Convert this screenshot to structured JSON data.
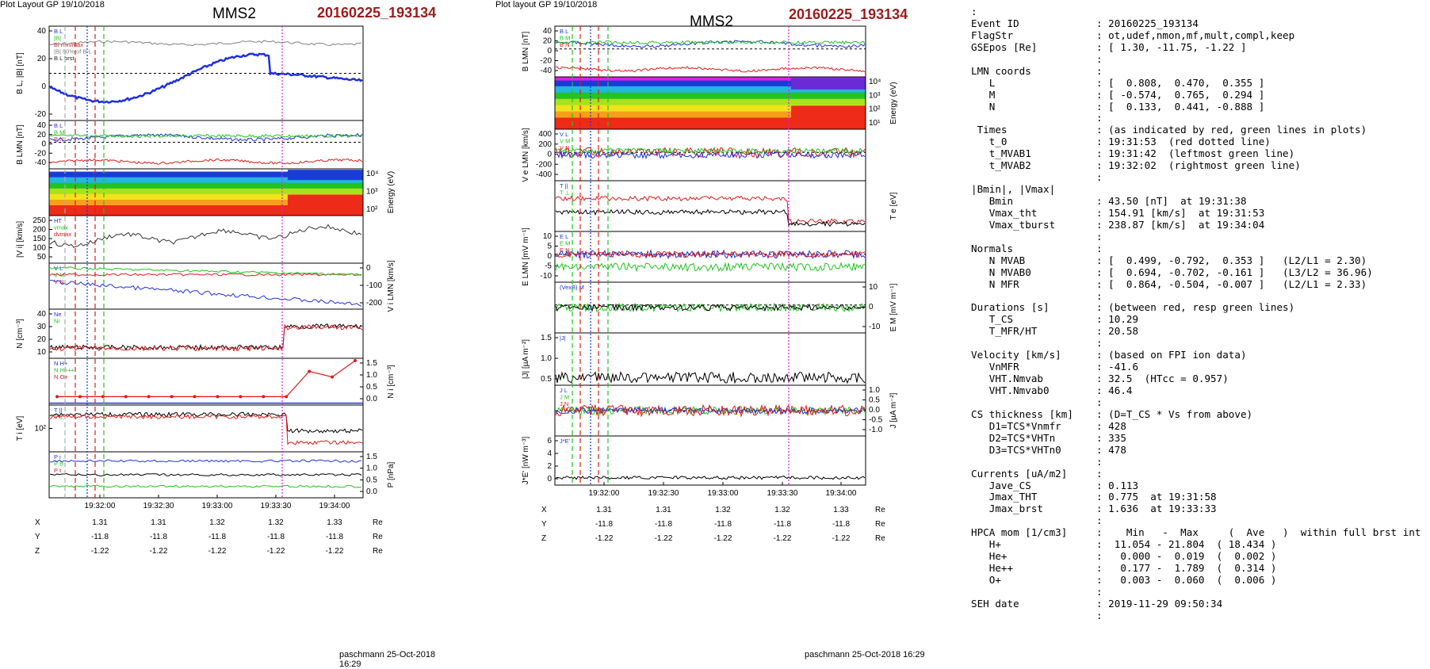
{
  "colors": {
    "event_red": "#9b1b1b",
    "blue": "#1f2fe0",
    "red": "#e01a1a",
    "green": "#22c322",
    "black": "#000000",
    "magenta": "#e11ee1",
    "cyan": "#22b6e0",
    "gray": "#808080"
  },
  "left_plot": {
    "header": "Plot Layout GP 19/10/2018",
    "title": "MMS2",
    "event": "20160225_193134",
    "footer": "paschmann 25-Oct-2018 16:29",
    "x_ticks": [
      "19:32:00",
      "19:32:30",
      "19:33:00",
      "19:33:30",
      "19:34:00"
    ],
    "ephem": {
      "rows": [
        {
          "label": "X",
          "values": [
            "1.31",
            "1.31",
            "1.32",
            "1.32",
            "1.33"
          ],
          "unit": "Re"
        },
        {
          "label": "Y",
          "values": [
            "-11.8",
            "-11.8",
            "-11.8",
            "-11.8",
            "-11.8"
          ],
          "unit": "Re"
        },
        {
          "label": "Z",
          "values": [
            "-1.22",
            "-1.22",
            "-1.22",
            "-1.22",
            "-1.22"
          ],
          "unit": "Re"
        }
      ]
    },
    "panels": [
      {
        "ylabel": "B_L, |B| [nT]",
        "side": "left",
        "ticks": [
          "40",
          "20",
          "0",
          "-20"
        ],
        "legend": [
          "B_L",
          "|B|",
          "Bl_min/max",
          "|B| 50% of B_L",
          "B_L brst"
        ]
      },
      {
        "ylabel": "B_LMN [nT]",
        "side": "left",
        "ticks": [
          "40",
          "20",
          "0",
          "-20",
          "-40"
        ],
        "legend": [
          "B_L",
          "B_M",
          "B_N"
        ]
      },
      {
        "ylabel": "Energy (eV)",
        "side": "right",
        "ticks": [
          "10^4",
          "10^3",
          "10^2"
        ],
        "legend": []
      },
      {
        "ylabel": "|V_i| [km/s]",
        "side": "left",
        "ticks": [
          "250",
          "200",
          "150",
          "100",
          "50"
        ],
        "legend": [
          "HT",
          "vmax",
          "dvmax"
        ]
      },
      {
        "ylabel": "V_i LMN [km/s]",
        "side": "right",
        "ticks": [
          "0",
          "-100",
          "-200"
        ],
        "legend": [
          "V_L",
          "V_M",
          "V_N"
        ]
      },
      {
        "ylabel": "N [cm^-3]",
        "side": "left",
        "ticks": [
          "40",
          "30",
          "20",
          "10"
        ],
        "legend": [
          "Ne",
          "Ni"
        ]
      },
      {
        "ylabel": "N_i [cm^-3]",
        "side": "right",
        "ticks": [
          "1.5",
          "1.0",
          "0.5",
          "0.0"
        ],
        "legend": [
          "N H+",
          "N He++",
          "N O+"
        ]
      },
      {
        "ylabel": "T_i [eV]",
        "side": "left",
        "ticks": [
          "10^2"
        ],
        "legend": [
          "T_||",
          "T_⊥"
        ]
      },
      {
        "ylabel": "P [nPa]",
        "side": "right",
        "ticks": [
          "1.5",
          "1.0",
          "0.5",
          "0.0"
        ],
        "legend": [
          "P_i",
          "P_B",
          "P_t"
        ]
      }
    ]
  },
  "middle_plot": {
    "header": "Plot layout GP 19/10/2018",
    "title": "MMS2",
    "event": "20160225_193134",
    "footer": "paschmann 25-Oct-2018 16:29",
    "x_ticks": [
      "19:32:00",
      "19:32:30",
      "19:33:00",
      "19:33:30",
      "19:34:00"
    ],
    "ephem": {
      "rows": [
        {
          "label": "X",
          "values": [
            "1.31",
            "1.31",
            "1.32",
            "1.32",
            "1.33"
          ],
          "unit": "Re"
        },
        {
          "label": "Y",
          "values": [
            "-11.8",
            "-11.8",
            "-11.8",
            "-11.8",
            "-11.8"
          ],
          "unit": "Re"
        },
        {
          "label": "Z",
          "values": [
            "-1.22",
            "-1.22",
            "-1.22",
            "-1.22",
            "-1.22"
          ],
          "unit": "Re"
        }
      ]
    },
    "panels": [
      {
        "ylabel": "B_LMN [nT]",
        "side": "left",
        "ticks": [
          "40",
          "20",
          "0",
          "-20",
          "-40"
        ],
        "legend": [
          "B_L",
          "B_M",
          "B_N"
        ]
      },
      {
        "ylabel": "Energy (eV)",
        "side": "right",
        "ticks": [
          "10^4",
          "10^3",
          "10^2",
          "10^1"
        ],
        "legend": []
      },
      {
        "ylabel": "V_e LMN [km/s]",
        "side": "left",
        "ticks": [
          "400",
          "200",
          "0",
          "-200",
          "-400"
        ],
        "legend": [
          "V_L",
          "V_M",
          "V_N"
        ]
      },
      {
        "ylabel": "T_e [eV]",
        "side": "right",
        "ticks": [],
        "legend": [
          "T_||",
          "T_⊥"
        ]
      },
      {
        "ylabel": "E_LMN [mV m^-1]",
        "side": "left",
        "ticks": [
          "10",
          "5",
          "0",
          "-5",
          "-10"
        ],
        "legend": [
          "E_L",
          "E_M",
          "E_N"
        ]
      },
      {
        "ylabel": "E_M [mV m^-1]",
        "side": "right",
        "ticks": [
          "10",
          "0",
          "-10"
        ],
        "legend": [
          "(VexB)_M"
        ]
      },
      {
        "ylabel": "|J| [µA m^-2]",
        "side": "left",
        "ticks": [
          "1.5",
          "1.0",
          "0.5"
        ],
        "legend": [
          "|J|"
        ]
      },
      {
        "ylabel": "J [µA m^-2]",
        "side": "right",
        "ticks": [
          "1.0",
          "0.5",
          "0.0",
          "-0.5",
          "-1.0"
        ],
        "legend": [
          "J_L",
          "J_M",
          "J_N"
        ]
      },
      {
        "ylabel": "J*E' [nW m^-3]",
        "side": "left",
        "ticks": [
          "6",
          "4",
          "2",
          "0"
        ],
        "legend": [
          "J*E'"
        ]
      }
    ]
  },
  "info_table": [
    {
      "key": ":",
      "val": ""
    },
    {
      "key": "Event ID",
      "val": ": 20160225_193134"
    },
    {
      "key": "FlagStr",
      "val": ": ot,udef,nmon,mf,mult,compl,keep"
    },
    {
      "key": "GSEpos [Re]",
      "val": ": [ 1.30, -11.75, -1.22 ]"
    },
    {
      "key": "",
      "val": ":"
    },
    {
      "key": "LMN coords",
      "val": ":"
    },
    {
      "key": "   L",
      "val": ": [  0.808,  0.470,  0.355 ]"
    },
    {
      "key": "   M",
      "val": ": [ -0.574,  0.765,  0.294 ]"
    },
    {
      "key": "   N",
      "val": ": [  0.133,  0.441, -0.888 ]"
    },
    {
      "key": "",
      "val": ":"
    },
    {
      "key": " Times",
      "val": ": (as indicated by red, green lines in plots)"
    },
    {
      "key": "   t_0",
      "val": ": 19:31:53  (red dotted line)"
    },
    {
      "key": "   t_MVAB1",
      "val": ": 19:31:42  (leftmost green line)"
    },
    {
      "key": "   t_MVAB2",
      "val": ": 19:32:02  (rightmost green line)"
    },
    {
      "key": "",
      "val": ":"
    },
    {
      "key": "|Bmin|, |Vmax|",
      "val": ""
    },
    {
      "key": "   Bmin",
      "val": ": 43.50 [nT]  at 19:31:38"
    },
    {
      "key": "   Vmax_tht",
      "val": ": 154.91 [km/s]  at 19:31:53"
    },
    {
      "key": "   Vmax_tburst",
      "val": ": 238.87 [km/s]  at 19:34:04"
    },
    {
      "key": "",
      "val": ":"
    },
    {
      "key": "Normals",
      "val": ":"
    },
    {
      "key": "   N MVAB",
      "val": ": [  0.499, -0.792,  0.353 ]   (L2/L1 = 2.30)"
    },
    {
      "key": "   N MVAB0",
      "val": ": [  0.694, -0.702, -0.161 ]   (L3/L2 = 36.96)"
    },
    {
      "key": "   N MFR",
      "val": ": [  0.864, -0.504, -0.007 ]   (L2/L1 = 2.33)"
    },
    {
      "key": "",
      "val": ":"
    },
    {
      "key": "Durations [s]",
      "val": ": (between red, resp green lines)"
    },
    {
      "key": "   T_CS",
      "val": ": 10.29"
    },
    {
      "key": "   T_MFR/HT",
      "val": ": 20.58"
    },
    {
      "key": "",
      "val": ":"
    },
    {
      "key": "Velocity [km/s]",
      "val": ": (based on FPI ion data)"
    },
    {
      "key": "   VnMFR",
      "val": ": -41.6"
    },
    {
      "key": "   VHT.Nmvab",
      "val": ": 32.5  (HTcc = 0.957)"
    },
    {
      "key": "   VHT.Nmvab0",
      "val": ": 46.4"
    },
    {
      "key": "",
      "val": ":"
    },
    {
      "key": "CS thickness [km]",
      "val": ": (D=T_CS * Vs from above)"
    },
    {
      "key": "   D1=TCS*Vnmfr",
      "val": ": 428"
    },
    {
      "key": "   D2=TCS*VHTn",
      "val": ": 335"
    },
    {
      "key": "   D3=TCS*VHTn0",
      "val": ": 478"
    },
    {
      "key": "",
      "val": ":"
    },
    {
      "key": "Currents [uA/m2]",
      "val": ":"
    },
    {
      "key": "   Jave_CS",
      "val": ": 0.113"
    },
    {
      "key": "   Jmax_THT",
      "val": ": 0.775  at 19:31:58"
    },
    {
      "key": "   Jmax_brst",
      "val": ": 1.636  at 19:33:33"
    },
    {
      "key": "",
      "val": ":"
    },
    {
      "key": "HPCA mom [1/cm3]",
      "val": ":    Min   -  Max     (  Ave   )  within full brst int"
    },
    {
      "key": "   H+",
      "val": ":  11.054 - 21.804  ( 18.434 )"
    },
    {
      "key": "   He+",
      "val": ":   0.000 -  0.019  (  0.002 )"
    },
    {
      "key": "   He++",
      "val": ":   0.177 -  1.789  (  0.314 )"
    },
    {
      "key": "   O+",
      "val": ":   0.003 -  0.060  (  0.006 )"
    },
    {
      "key": "",
      "val": ":"
    },
    {
      "key": "SEH date",
      "val": ": 2019-11-29 09:50:34"
    },
    {
      "key": "",
      "val": ":"
    }
  ]
}
